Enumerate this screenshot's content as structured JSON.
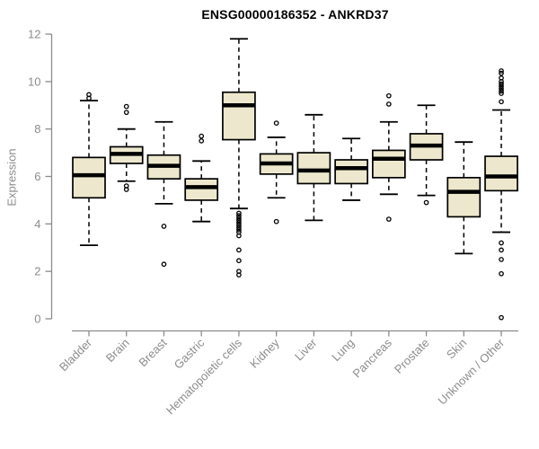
{
  "chart_data": {
    "type": "boxplot",
    "title": "ENSG00000186352 - ANKRD37",
    "ylabel": "Expression",
    "ylim": [
      0,
      12
    ],
    "yticks": [
      0,
      2,
      4,
      6,
      8,
      10,
      12
    ],
    "grid": false,
    "background": "#ffffff",
    "box_fill": "#EDE8CD",
    "box_stroke": "#000000",
    "median_color": "#000000",
    "axis_color": "#8c8c8c",
    "categories": [
      "Bladder",
      "Brain",
      "Breast",
      "Gastric",
      "Hematopoietic cells",
      "Kidney",
      "Liver",
      "Lung",
      "Pancreas",
      "Prostate",
      "Skin",
      "Unknown / Other"
    ],
    "series": [
      {
        "name": "Bladder",
        "whisker_low": 3.1,
        "q1": 5.1,
        "median": 6.05,
        "q3": 6.8,
        "whisker_high": 9.2,
        "outliers": [
          9.3,
          9.45
        ]
      },
      {
        "name": "Brain",
        "whisker_low": 5.8,
        "q1": 6.55,
        "median": 6.95,
        "q3": 7.25,
        "whisker_high": 8.0,
        "outliers": [
          8.95,
          8.7,
          5.6,
          5.45
        ]
      },
      {
        "name": "Breast",
        "whisker_low": 4.85,
        "q1": 5.9,
        "median": 6.45,
        "q3": 6.9,
        "whisker_high": 8.3,
        "outliers": [
          3.9,
          2.3
        ]
      },
      {
        "name": "Gastric",
        "whisker_low": 4.1,
        "q1": 5.0,
        "median": 5.55,
        "q3": 5.9,
        "whisker_high": 6.65,
        "outliers": [
          7.7,
          7.5
        ]
      },
      {
        "name": "Hematopoietic cells",
        "whisker_low": 4.65,
        "q1": 7.55,
        "median": 9.0,
        "q3": 9.55,
        "whisker_high": 11.8,
        "outliers": [
          4.45,
          4.35,
          4.25,
          4.15,
          4.05,
          3.95,
          3.85,
          3.75,
          3.65,
          3.5,
          2.9,
          2.45,
          2.0,
          1.85
        ]
      },
      {
        "name": "Kidney",
        "whisker_low": 5.1,
        "q1": 6.1,
        "median": 6.55,
        "q3": 6.95,
        "whisker_high": 7.65,
        "outliers": [
          8.25,
          4.1
        ]
      },
      {
        "name": "Liver",
        "whisker_low": 4.15,
        "q1": 5.7,
        "median": 6.25,
        "q3": 7.0,
        "whisker_high": 8.6,
        "outliers": []
      },
      {
        "name": "Lung",
        "whisker_low": 5.0,
        "q1": 5.7,
        "median": 6.35,
        "q3": 6.7,
        "whisker_high": 7.6,
        "outliers": []
      },
      {
        "name": "Pancreas",
        "whisker_low": 5.25,
        "q1": 5.95,
        "median": 6.75,
        "q3": 7.1,
        "whisker_high": 8.3,
        "outliers": [
          9.4,
          9.05,
          4.2
        ]
      },
      {
        "name": "Prostate",
        "whisker_low": 5.2,
        "q1": 6.7,
        "median": 7.3,
        "q3": 7.8,
        "whisker_high": 9.0,
        "outliers": [
          4.9
        ]
      },
      {
        "name": "Skin",
        "whisker_low": 2.75,
        "q1": 4.3,
        "median": 5.35,
        "q3": 5.95,
        "whisker_high": 7.45,
        "outliers": []
      },
      {
        "name": "Unknown / Other",
        "whisker_low": 3.65,
        "q1": 5.4,
        "median": 6.0,
        "q3": 6.85,
        "whisker_high": 8.8,
        "outliers": [
          10.45,
          10.35,
          10.15,
          10.0,
          9.9,
          9.8,
          9.7,
          9.6,
          9.5,
          9.15,
          3.2,
          2.9,
          2.5,
          1.9,
          0.05
        ]
      }
    ]
  }
}
